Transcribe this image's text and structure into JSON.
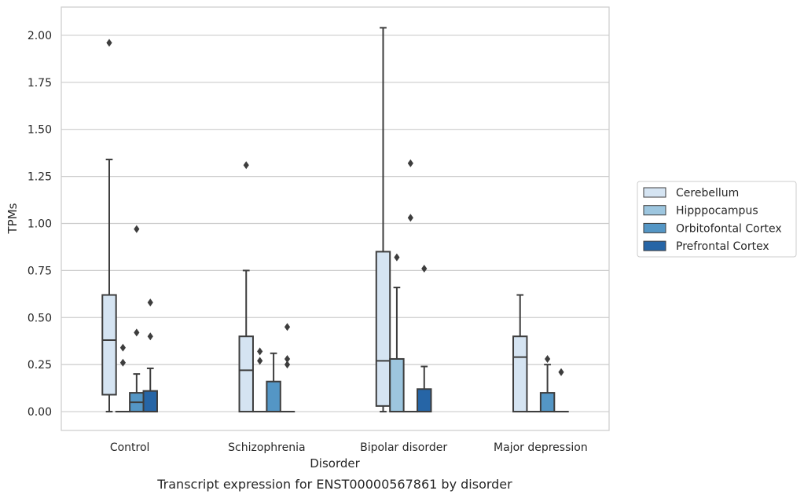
{
  "chart_data": {
    "type": "box",
    "title": "",
    "caption": "Transcript expression for ENST00000567861 by disorder",
    "xlabel": "Disorder",
    "ylabel": "TPMs",
    "ylim": [
      -0.1,
      2.15
    ],
    "yticks": [
      0.0,
      0.25,
      0.5,
      0.75,
      1.0,
      1.25,
      1.5,
      1.75,
      2.0
    ],
    "ytick_labels": [
      "0.00",
      "0.25",
      "0.50",
      "0.75",
      "1.00",
      "1.25",
      "1.50",
      "1.75",
      "2.00"
    ],
    "grid": "horizontal",
    "legend_position": "right",
    "categories": [
      "Control",
      "Schizophrenia",
      "Bipolar disorder",
      "Major depression"
    ],
    "series": [
      {
        "name": "Cerebellum",
        "color": "#d5e4f2",
        "boxes": [
          {
            "whisker_low": 0.0,
            "q1": 0.09,
            "median": 0.38,
            "q3": 0.62,
            "whisker_high": 1.34,
            "outliers": [
              1.96
            ]
          },
          {
            "whisker_low": 0.0,
            "q1": 0.0,
            "median": 0.22,
            "q3": 0.4,
            "whisker_high": 0.75,
            "outliers": [
              1.31
            ]
          },
          {
            "whisker_low": 0.0,
            "q1": 0.03,
            "median": 0.27,
            "q3": 0.85,
            "whisker_high": 2.04,
            "outliers": []
          },
          {
            "whisker_low": 0.0,
            "q1": 0.0,
            "median": 0.29,
            "q3": 0.4,
            "whisker_high": 0.62,
            "outliers": []
          }
        ]
      },
      {
        "name": "Hipppocampus",
        "color": "#9dc6df",
        "boxes": [
          {
            "whisker_low": 0.0,
            "q1": 0.0,
            "median": 0.0,
            "q3": 0.0,
            "whisker_high": 0.0,
            "outliers": [
              0.26,
              0.34
            ]
          },
          {
            "whisker_low": 0.0,
            "q1": 0.0,
            "median": 0.0,
            "q3": 0.0,
            "whisker_high": 0.0,
            "outliers": [
              0.27,
              0.32
            ]
          },
          {
            "whisker_low": 0.0,
            "q1": 0.0,
            "median": 0.0,
            "q3": 0.28,
            "whisker_high": 0.66,
            "outliers": [
              0.82
            ]
          },
          {
            "whisker_low": 0.0,
            "q1": 0.0,
            "median": 0.0,
            "q3": 0.0,
            "whisker_high": 0.0,
            "outliers": []
          }
        ]
      },
      {
        "name": "Orbitofontal Cortex",
        "color": "#5496c5",
        "boxes": [
          {
            "whisker_low": 0.0,
            "q1": 0.0,
            "median": 0.05,
            "q3": 0.1,
            "whisker_high": 0.2,
            "outliers": [
              0.42,
              0.97
            ]
          },
          {
            "whisker_low": 0.0,
            "q1": 0.0,
            "median": 0.0,
            "q3": 0.16,
            "whisker_high": 0.31,
            "outliers": []
          },
          {
            "whisker_low": 0.0,
            "q1": 0.0,
            "median": 0.0,
            "q3": 0.0,
            "whisker_high": 0.0,
            "outliers": [
              1.03,
              1.32
            ]
          },
          {
            "whisker_low": 0.0,
            "q1": 0.0,
            "median": 0.0,
            "q3": 0.1,
            "whisker_high": 0.25,
            "outliers": [
              0.28
            ]
          }
        ]
      },
      {
        "name": "Prefrontal Cortex",
        "color": "#2665a6",
        "boxes": [
          {
            "whisker_low": 0.0,
            "q1": 0.0,
            "median": 0.0,
            "q3": 0.11,
            "whisker_high": 0.23,
            "outliers": [
              0.4,
              0.58
            ]
          },
          {
            "whisker_low": 0.0,
            "q1": 0.0,
            "median": 0.0,
            "q3": 0.0,
            "whisker_high": 0.0,
            "outliers": [
              0.25,
              0.28,
              0.45
            ]
          },
          {
            "whisker_low": 0.0,
            "q1": 0.0,
            "median": 0.0,
            "q3": 0.12,
            "whisker_high": 0.24,
            "outliers": [
              0.76
            ]
          },
          {
            "whisker_low": 0.0,
            "q1": 0.0,
            "median": 0.0,
            "q3": 0.0,
            "whisker_high": 0.0,
            "outliers": [
              0.21
            ]
          }
        ]
      }
    ]
  }
}
